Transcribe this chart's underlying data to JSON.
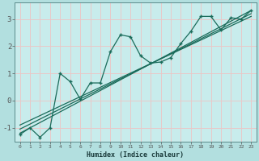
{
  "background_color": "#b2dfdf",
  "plot_bg_color": "#c8ecec",
  "grid_color": "#e8c8c8",
  "line_color": "#1a6b5a",
  "xlabel": "Humidex (Indice chaleur)",
  "xlim": [
    -0.5,
    23.5
  ],
  "ylim": [
    -1.5,
    3.6
  ],
  "yticks": [
    -1,
    0,
    1,
    2,
    3
  ],
  "xticks": [
    0,
    1,
    2,
    3,
    4,
    5,
    6,
    7,
    8,
    9,
    10,
    11,
    12,
    13,
    14,
    15,
    16,
    17,
    18,
    19,
    20,
    21,
    22,
    23
  ],
  "zigzag_x": [
    0,
    1,
    2,
    3,
    4,
    5,
    6,
    7,
    8,
    9,
    10,
    11,
    12,
    13,
    14,
    15,
    16,
    17,
    18,
    19,
    20,
    21,
    22,
    23
  ],
  "zigzag_y": [
    -1.25,
    -1.0,
    -1.35,
    -1.0,
    1.0,
    0.7,
    0.05,
    0.65,
    0.65,
    1.8,
    2.42,
    2.35,
    1.65,
    1.38,
    1.42,
    1.58,
    2.1,
    2.55,
    3.1,
    3.1,
    2.6,
    3.05,
    3.0,
    3.32
  ],
  "line1_x": [
    0,
    23
  ],
  "line1_y": [
    -1.2,
    3.32
  ],
  "line2_x": [
    0,
    23
  ],
  "line2_y": [
    -1.05,
    3.2
  ],
  "line3_x": [
    0,
    23
  ],
  "line3_y": [
    -0.9,
    3.1
  ]
}
